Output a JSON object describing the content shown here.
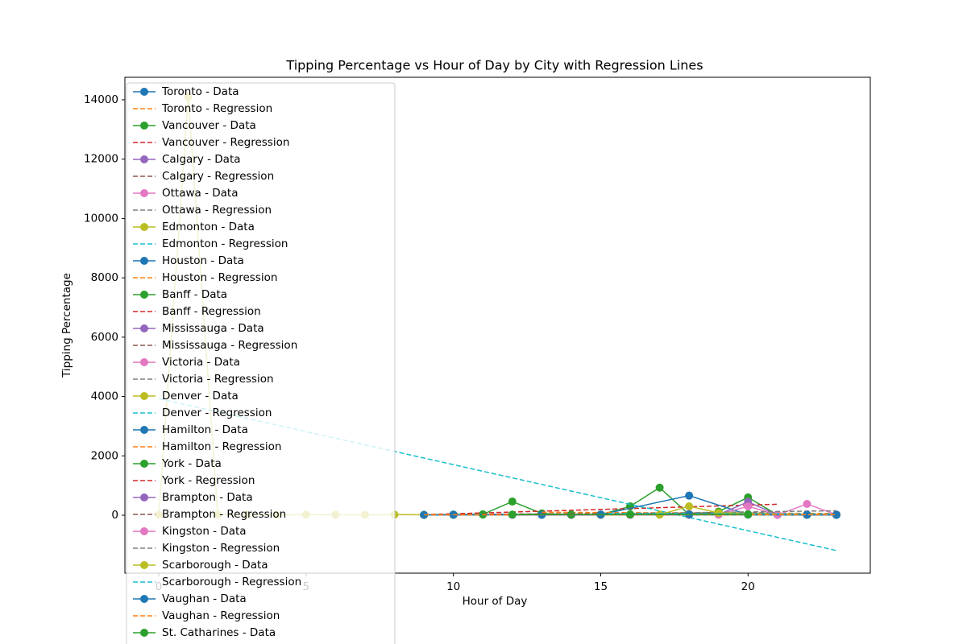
{
  "chart_data": {
    "type": "line",
    "title": "Tipping Percentage vs Hour of Day by City with Regression Lines",
    "x_label": "Hour of Day",
    "y_label": "Tipping Percentage",
    "xlim": [
      -1.15,
      24.15
    ],
    "xticks": [
      0,
      5,
      10,
      15,
      20
    ],
    "ylim": [
      -1953,
      14759
    ],
    "yticks": [
      0,
      2000,
      4000,
      6000,
      8000,
      10000,
      12000,
      14000
    ],
    "grid": false,
    "legend": "upper left",
    "series": [
      {
        "name": "Toronto - Data",
        "color": "#1f77b4",
        "style": "marker",
        "x": [
          10,
          13,
          15,
          16,
          18,
          20,
          23
        ],
        "values": [
          20,
          30,
          15,
          25,
          40,
          30,
          20
        ]
      },
      {
        "name": "Toronto - Regression",
        "color": "#ff7f0e",
        "style": "dashed",
        "x": [
          10,
          23
        ],
        "values": [
          22,
          28
        ]
      },
      {
        "name": "Vancouver - Data",
        "color": "#2ca02c",
        "style": "marker",
        "x": [
          9,
          10,
          11,
          12,
          13,
          14,
          15,
          16,
          17,
          18,
          19,
          20,
          21
        ],
        "values": [
          10,
          20,
          30,
          460,
          60,
          10,
          20,
          300,
          930,
          20,
          120,
          600,
          10
        ]
      },
      {
        "name": "Vancouver - Regression",
        "color": "#d62728",
        "style": "dashed",
        "x": [
          9,
          21
        ],
        "values": [
          20,
          370
        ]
      },
      {
        "name": "Calgary - Data",
        "color": "#9467bd",
        "style": "marker",
        "x": [
          14,
          16,
          18,
          20,
          22,
          23
        ],
        "values": [
          10,
          20,
          15,
          30,
          20,
          10
        ]
      },
      {
        "name": "Calgary - Regression",
        "color": "#8c564b",
        "style": "dashed",
        "x": [
          14,
          23
        ],
        "values": [
          18,
          18
        ]
      },
      {
        "name": "Ottawa - Data",
        "color": "#e377c2",
        "style": "marker",
        "x": [
          15,
          18,
          20,
          23
        ],
        "values": [
          20,
          40,
          30,
          20
        ]
      },
      {
        "name": "Ottawa - Regression",
        "color": "#7f7f7f",
        "style": "dashed",
        "x": [
          15,
          23
        ],
        "values": [
          28,
          25
        ]
      },
      {
        "name": "Edmonton - Data",
        "color": "#bcbd22",
        "style": "marker",
        "x": [
          16,
          19,
          23
        ],
        "values": [
          10,
          20,
          15
        ]
      },
      {
        "name": "Edmonton - Regression",
        "color": "#17becf",
        "style": "dashed",
        "x": [
          16,
          23
        ],
        "values": [
          15,
          15
        ]
      },
      {
        "name": "Houston - Data",
        "color": "#1f77b4",
        "style": "marker",
        "x": [
          9,
          10,
          16,
          20,
          22,
          23
        ],
        "values": [
          10,
          15,
          20,
          25,
          20,
          10
        ]
      },
      {
        "name": "Houston - Regression",
        "color": "#ff7f0e",
        "style": "dashed",
        "x": [
          9,
          23
        ],
        "values": [
          15,
          17
        ]
      },
      {
        "name": "Banff - Data",
        "color": "#2ca02c",
        "style": "marker",
        "x": [
          11,
          13,
          16,
          19,
          23
        ],
        "values": [
          20,
          30,
          25,
          90,
          10
        ]
      },
      {
        "name": "Banff - Regression",
        "color": "#d62728",
        "style": "dashed",
        "x": [
          11,
          23
        ],
        "values": [
          35,
          30
        ]
      },
      {
        "name": "Mississauga - Data",
        "color": "#9467bd",
        "style": "marker",
        "x": [
          14,
          17,
          20,
          23
        ],
        "values": [
          15,
          20,
          25,
          10
        ]
      },
      {
        "name": "Mississauga - Regression",
        "color": "#8c564b",
        "style": "dashed",
        "x": [
          14,
          23
        ],
        "values": [
          20,
          17
        ]
      },
      {
        "name": "Victoria - Data",
        "color": "#e377c2",
        "style": "marker",
        "x": [
          15,
          18,
          21
        ],
        "values": [
          10,
          20,
          15
        ]
      },
      {
        "name": "Victoria - Regression",
        "color": "#7f7f7f",
        "style": "dashed",
        "x": [
          15,
          21
        ],
        "values": [
          15,
          15
        ]
      },
      {
        "name": "Denver - Data",
        "color": "#bcbd22",
        "style": "marker",
        "x": [
          0,
          1,
          2,
          3,
          4,
          5,
          6,
          7,
          8,
          9
        ],
        "values": [
          10,
          14100,
          20,
          15,
          10,
          20,
          15,
          10,
          20,
          15
        ]
      },
      {
        "name": "Denver - Regression",
        "color": "#17becf",
        "style": "dashed",
        "x": [
          0,
          23
        ],
        "values": [
          3930,
          -1190
        ]
      },
      {
        "name": "Hamilton - Data",
        "color": "#1f77b4",
        "style": "marker",
        "x": [
          13,
          15,
          18,
          20,
          23
        ],
        "values": [
          10,
          20,
          660,
          20,
          10
        ]
      },
      {
        "name": "Hamilton - Regression",
        "color": "#ff7f0e",
        "style": "dashed",
        "x": [
          13,
          23
        ],
        "values": [
          100,
          60
        ]
      },
      {
        "name": "York - Data",
        "color": "#2ca02c",
        "style": "marker",
        "x": [
          10,
          14,
          18,
          22
        ],
        "values": [
          15,
          20,
          25,
          15
        ]
      },
      {
        "name": "York - Regression",
        "color": "#d62728",
        "style": "dashed",
        "x": [
          10,
          22
        ],
        "values": [
          18,
          20
        ]
      },
      {
        "name": "Brampton - Data",
        "color": "#9467bd",
        "style": "marker",
        "x": [
          12,
          16,
          19,
          20,
          21
        ],
        "values": [
          10,
          15,
          20,
          450,
          15
        ]
      },
      {
        "name": "Brampton - Regression",
        "color": "#8c564b",
        "style": "dashed",
        "x": [
          12,
          21
        ],
        "values": [
          40,
          80
        ]
      },
      {
        "name": "Kingston - Data",
        "color": "#e377c2",
        "style": "marker",
        "x": [
          16,
          18,
          19,
          20,
          21,
          22,
          23
        ],
        "values": [
          10,
          20,
          20,
          300,
          10,
          380,
          15
        ]
      },
      {
        "name": "Kingston - Regression",
        "color": "#7f7f7f",
        "style": "dashed",
        "x": [
          16,
          23
        ],
        "values": [
          60,
          150
        ]
      },
      {
        "name": "Scarborough - Data",
        "color": "#bcbd22",
        "style": "marker",
        "x": [
          15,
          17,
          18,
          19,
          23
        ],
        "values": [
          10,
          20,
          300,
          80,
          15
        ]
      },
      {
        "name": "Scarborough - Regression",
        "color": "#17becf",
        "style": "dashed",
        "x": [
          15,
          23
        ],
        "values": [
          60,
          40
        ]
      },
      {
        "name": "Vaughan - Data",
        "color": "#1f77b4",
        "style": "marker",
        "x": [
          9,
          10,
          15,
          18,
          22,
          23
        ],
        "values": [
          10,
          15,
          20,
          25,
          10,
          15
        ]
      },
      {
        "name": "Vaughan - Regression",
        "color": "#ff7f0e",
        "style": "dashed",
        "x": [
          9,
          23
        ],
        "values": [
          15,
          18
        ]
      },
      {
        "name": "St. Catharines - Data",
        "color": "#2ca02c",
        "style": "marker",
        "x": [
          12,
          16,
          20
        ],
        "values": [
          20,
          25,
          30
        ]
      }
    ]
  }
}
